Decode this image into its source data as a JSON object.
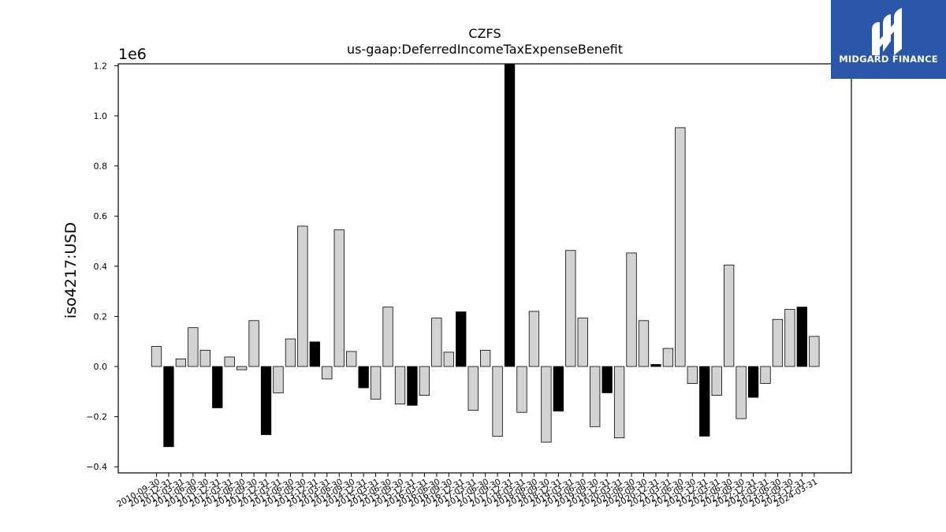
{
  "chart_data": {
    "type": "bar",
    "title": "CZFS",
    "subtitle": "us-gaap:DeferredIncomeTaxExpenseBenefit",
    "ylabel": "iso4217:USD",
    "xlabel": "",
    "y_multiplier_label": "1e6",
    "ylim": [
      -0.43,
      1.2
    ],
    "yticks": [
      -0.4,
      -0.2,
      0.0,
      0.2,
      0.4,
      0.6,
      0.8,
      1.0,
      1.2
    ],
    "ytick_labels": [
      "−0.4",
      "−0.2",
      "0.0",
      "0.2",
      "0.4",
      "0.6",
      "0.8",
      "1.0",
      "1.2"
    ],
    "grid": false,
    "categories": [
      "2010-09-30",
      "2010-12-31",
      "2011-03-31",
      "2011-06-30",
      "2011-09-30",
      "2011-12-31",
      "2012-03-31",
      "2012-06-30",
      "2012-09-30",
      "2012-12-31",
      "2013-03-31",
      "2013-06-30",
      "2013-09-30",
      "2013-12-31",
      "2014-03-31",
      "2014-06-30",
      "2014-09-30",
      "2014-12-31",
      "2015-03-31",
      "2015-06-30",
      "2015-09-30",
      "2015-12-31",
      "2016-03-31",
      "2016-06-30",
      "2016-09-30",
      "2016-12-31",
      "2017-03-31",
      "2017-06-30",
      "2017-09-30",
      "2017-12-31",
      "2018-03-31",
      "2018-06-30",
      "2018-09-30",
      "2018-12-31",
      "2019-03-31",
      "2019-06-30",
      "2019-09-30",
      "2019-12-31",
      "2020-03-31",
      "2020-06-30",
      "2020-09-30",
      "2020-12-31",
      "2021-03-31",
      "2021-06-30",
      "2021-09-30",
      "2021-12-31",
      "2022-03-31",
      "2022-06-30",
      "2022-09-30",
      "2022-12-31",
      "2023-03-31",
      "2023-06-30",
      "2023-09-30",
      "2023-12-31",
      "2024-03-31"
    ],
    "values": [
      0.08,
      -0.32,
      0.03,
      0.155,
      0.065,
      -0.165,
      0.038,
      -0.013,
      0.183,
      -0.272,
      -0.105,
      0.11,
      0.56,
      0.098,
      -0.05,
      0.545,
      0.06,
      -0.085,
      -0.13,
      0.237,
      -0.15,
      -0.155,
      -0.115,
      0.193,
      0.057,
      0.218,
      -0.175,
      0.065,
      -0.278,
      1.25,
      -0.183,
      0.22,
      -0.302,
      -0.178,
      0.463,
      0.193,
      -0.24,
      -0.105,
      -0.285,
      0.453,
      0.183,
      0.008,
      0.072,
      0.953,
      -0.068,
      -0.278,
      -0.115,
      0.405,
      -0.208,
      -0.123,
      -0.068,
      0.188,
      0.228,
      0.237,
      0.12
    ],
    "highlight": [
      false,
      true,
      false,
      false,
      false,
      true,
      false,
      false,
      false,
      true,
      false,
      false,
      false,
      true,
      false,
      false,
      false,
      true,
      false,
      false,
      false,
      true,
      false,
      false,
      false,
      true,
      false,
      false,
      false,
      true,
      false,
      false,
      false,
      true,
      false,
      false,
      false,
      true,
      false,
      false,
      false,
      true,
      false,
      false,
      false,
      true,
      false,
      false,
      false,
      true,
      false,
      false,
      false,
      true,
      false
    ],
    "colors": {
      "normal": "#d3d3d3",
      "highlight": "#000000",
      "edge": "#000000"
    }
  },
  "logo": {
    "text": "MIDGARD FINANCE",
    "background": "#2a56a8"
  }
}
